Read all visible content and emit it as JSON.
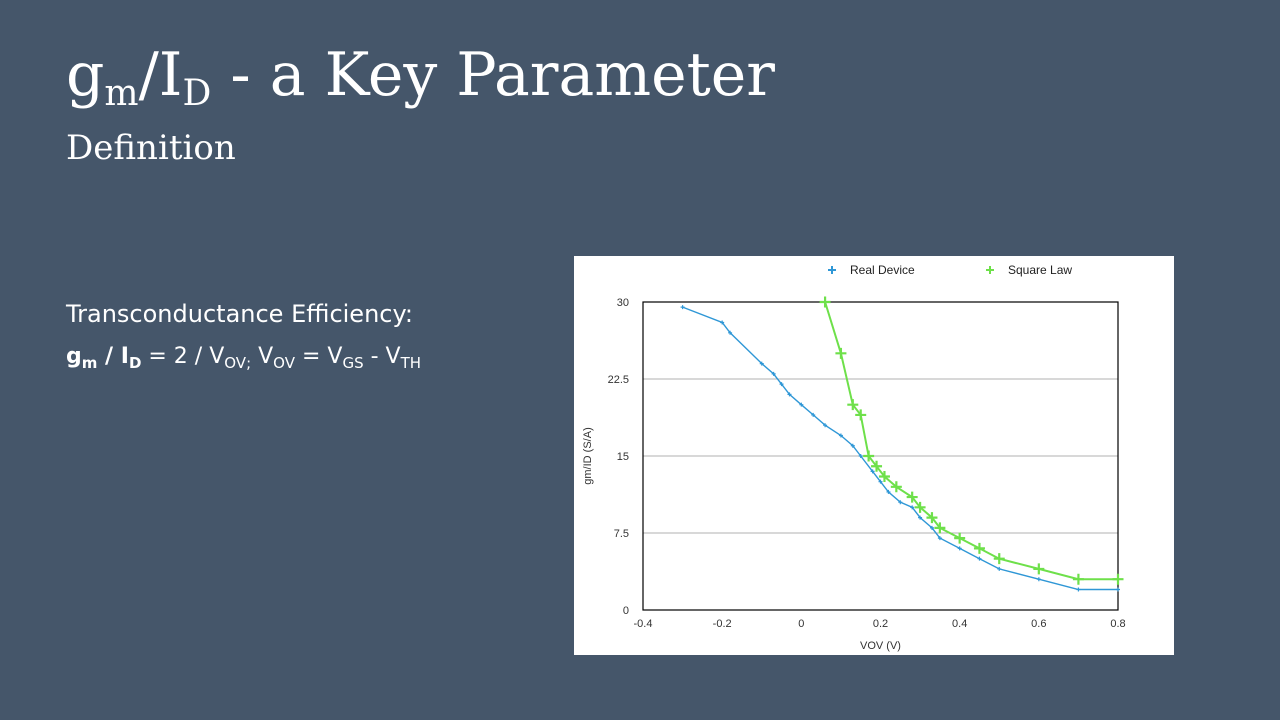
{
  "slide": {
    "title_main": "g",
    "title_m": "m",
    "title_slash_i": "/I",
    "title_d": "D",
    "title_rest": " - a Key Parameter",
    "subtitle": "Definition",
    "label": "Transconductance Efficiency:",
    "formula": {
      "g": "g",
      "m": "m",
      "slash_i": " / I",
      "d": "D",
      "eq": " = 2 / V",
      "ov1": "OV;",
      "v2": " V",
      "ov2": "OV",
      "eq2": " = V",
      "gs": "GS",
      "minus": " - V",
      "th": "TH"
    }
  },
  "chart_data": {
    "type": "line",
    "title": "",
    "xlabel": "VOV (V)",
    "ylabel": "gm/ID (S/A)",
    "xlim": [
      -0.4,
      0.8
    ],
    "ylim": [
      0,
      30
    ],
    "xticks": [
      "-0.4",
      "-0.2",
      "0",
      "0.2",
      "0.4",
      "0.6",
      "0.8"
    ],
    "yticks": [
      "0",
      "7.5",
      "15",
      "22.5",
      "30"
    ],
    "grid": "horizontal",
    "legend_position": "top",
    "series": [
      {
        "name": "Real Device",
        "color": "#2f97d6",
        "marker": "+",
        "x": [
          -0.3,
          -0.2,
          -0.18,
          -0.1,
          -0.07,
          -0.05,
          -0.03,
          0.0,
          0.03,
          0.06,
          0.1,
          0.13,
          0.15,
          0.18,
          0.2,
          0.22,
          0.25,
          0.28,
          0.3,
          0.33,
          0.35,
          0.4,
          0.45,
          0.5,
          0.6,
          0.7,
          0.8
        ],
        "y": [
          29.5,
          28.0,
          27.0,
          24.0,
          23.0,
          22.0,
          21.0,
          20.0,
          19.0,
          18.0,
          17.0,
          16.0,
          15.0,
          13.5,
          12.5,
          11.5,
          10.5,
          10.0,
          9.0,
          8.0,
          7.0,
          6.0,
          5.0,
          4.0,
          3.0,
          2.0,
          2.0
        ]
      },
      {
        "name": "Square Law",
        "color": "#6ee04a",
        "marker": "+",
        "x": [
          0.06,
          0.1,
          0.13,
          0.15,
          0.17,
          0.19,
          0.21,
          0.24,
          0.28,
          0.3,
          0.33,
          0.35,
          0.4,
          0.45,
          0.5,
          0.6,
          0.7,
          0.8
        ],
        "y": [
          30.0,
          25.0,
          20.0,
          19.0,
          15.0,
          14.0,
          13.0,
          12.0,
          11.0,
          10.0,
          9.0,
          8.0,
          7.0,
          6.0,
          5.0,
          4.0,
          3.0,
          3.0
        ]
      }
    ]
  }
}
